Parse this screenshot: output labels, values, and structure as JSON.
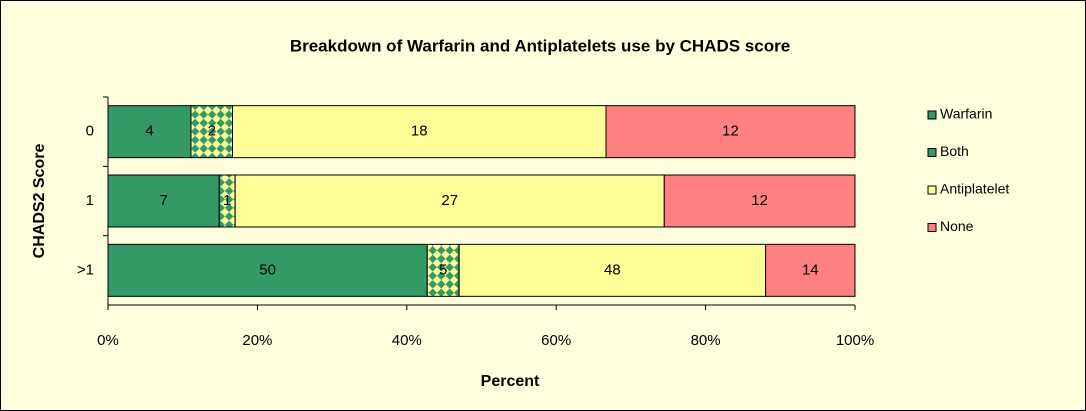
{
  "chart_data": {
    "type": "bar",
    "orientation": "horizontal",
    "stacked": "percent",
    "title": "Breakdown of Warfarin and Antiplatelets use by CHADS score",
    "xlabel": "Percent",
    "ylabel": "CHADS2 Score",
    "categories": [
      "0",
      "1",
      ">1"
    ],
    "series": [
      {
        "name": "Warfarin",
        "color": "#339966",
        "values": [
          4,
          7,
          50
        ]
      },
      {
        "name": "Both",
        "color": "#339966",
        "pattern": "checker",
        "values": [
          2,
          1,
          5
        ]
      },
      {
        "name": "Antiplatelet",
        "color": "#ffff99",
        "values": [
          18,
          27,
          48
        ]
      },
      {
        "name": "None",
        "color": "#ff8080",
        "values": [
          12,
          12,
          14
        ]
      }
    ],
    "xlim": [
      0,
      100
    ],
    "xticks": [
      {
        "value": 0,
        "label": "0%"
      },
      {
        "value": 20,
        "label": "20%"
      },
      {
        "value": 40,
        "label": "40%"
      },
      {
        "value": 60,
        "label": "60%"
      },
      {
        "value": 80,
        "label": "80%"
      },
      {
        "value": 100,
        "label": "100%"
      }
    ],
    "legend": "right"
  }
}
